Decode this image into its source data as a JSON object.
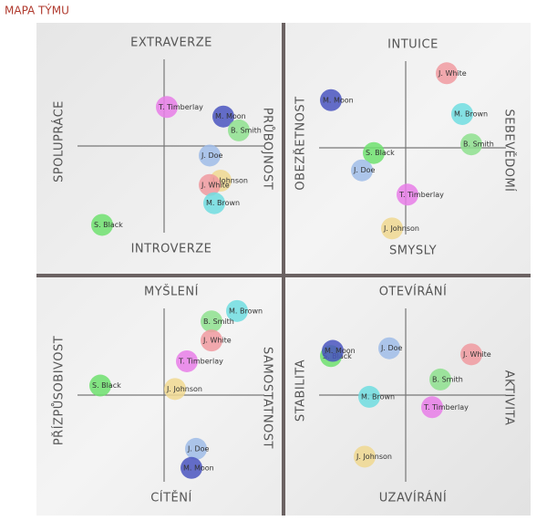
{
  "title": "MAPA TÝMU",
  "chart_data": [
    {
      "type": "scatter",
      "top_label": "EXTRAVERZE",
      "bottom_label": "INTROVERZE",
      "left_label": "SPOLUPRÁCE",
      "right_label": "PRŮBOJNOST",
      "xlim": [
        -1,
        1
      ],
      "ylim": [
        -1,
        1
      ],
      "labels": [
        "T. Timberlay",
        "M. Moon",
        "B. Smith",
        "J. Doe",
        "J. Johnson",
        "J. White",
        "M. Brown",
        "S. Black"
      ],
      "x": [
        0.03,
        0.65,
        0.82,
        0.5,
        0.62,
        0.5,
        0.55,
        -0.68
      ],
      "values": [
        0.45,
        0.34,
        0.18,
        -0.11,
        -0.4,
        -0.45,
        -0.66,
        -0.91
      ],
      "colors": [
        "#e87ee8",
        "#4a55c0",
        "#8ee08e",
        "#9fbce8",
        "#f0d890",
        "#f09aa0",
        "#70dde0",
        "#6ee06e"
      ]
    },
    {
      "type": "scatter",
      "top_label": "INTUICE",
      "bottom_label": "SMYSLY",
      "left_label": "OBEZŘETNOST",
      "right_label": "SEBEVĚDOMÍ",
      "xlim": [
        -1,
        1
      ],
      "ylim": [
        -1,
        1
      ],
      "labels": [
        "J. White",
        "M. Moon",
        "M. Brown",
        "B. Smith",
        "S. Black",
        "J. Doe",
        "T. Timberlay",
        "J. Johnson"
      ],
      "x": [
        0.45,
        -0.82,
        0.62,
        0.72,
        -0.35,
        -0.48,
        0.02,
        -0.15
      ],
      "values": [
        0.86,
        0.55,
        0.39,
        0.04,
        -0.06,
        -0.26,
        -0.54,
        -0.93
      ],
      "colors": [
        "#f09aa0",
        "#4a55c0",
        "#70dde0",
        "#8ee08e",
        "#6ee06e",
        "#9fbce8",
        "#e87ee8",
        "#f0d890"
      ]
    },
    {
      "type": "scatter",
      "top_label": "MYŠLENÍ",
      "bottom_label": "CÍTĚNÍ",
      "left_label": "PŘÍZPŮSOBIVOST",
      "right_label": "SAMOSTATNOST",
      "xlim": [
        -1,
        1
      ],
      "ylim": [
        -1,
        1
      ],
      "labels": [
        "M. Brown",
        "B. Smith",
        "J. White",
        "T. Timberlay",
        "S. Black",
        "J. Johnson",
        "J. Doe",
        "M. Moon"
      ],
      "x": [
        0.8,
        0.52,
        0.52,
        0.25,
        -0.7,
        0.12,
        0.35,
        0.3
      ],
      "values": [
        0.97,
        0.85,
        0.63,
        0.39,
        0.11,
        0.07,
        -0.62,
        -0.84
      ],
      "colors": [
        "#70dde0",
        "#8ee08e",
        "#f09aa0",
        "#e87ee8",
        "#6ee06e",
        "#f0d890",
        "#9fbce8",
        "#4a55c0"
      ]
    },
    {
      "type": "scatter",
      "top_label": "OTEVÍRÁNÍ",
      "bottom_label": "UZAVÍRÁNÍ",
      "left_label": "STABILITA",
      "right_label": "AKTIVITA",
      "xlim": [
        -1,
        1
      ],
      "ylim": [
        -1,
        1
      ],
      "labels": [
        "S. Black",
        "M. Moon",
        "J. Doe",
        "J. White",
        "B. Smith",
        "M. Brown",
        "T. Timberlay",
        "J. Johnson"
      ],
      "x": [
        -0.82,
        -0.8,
        -0.18,
        0.72,
        0.38,
        -0.4,
        0.29,
        -0.45
      ],
      "values": [
        0.45,
        0.51,
        0.54,
        0.47,
        0.18,
        -0.02,
        -0.14,
        -0.71
      ],
      "colors": [
        "#6ee06e",
        "#4a55c0",
        "#9fbce8",
        "#f09aa0",
        "#8ee08e",
        "#70dde0",
        "#e87ee8",
        "#f0d890"
      ]
    }
  ]
}
